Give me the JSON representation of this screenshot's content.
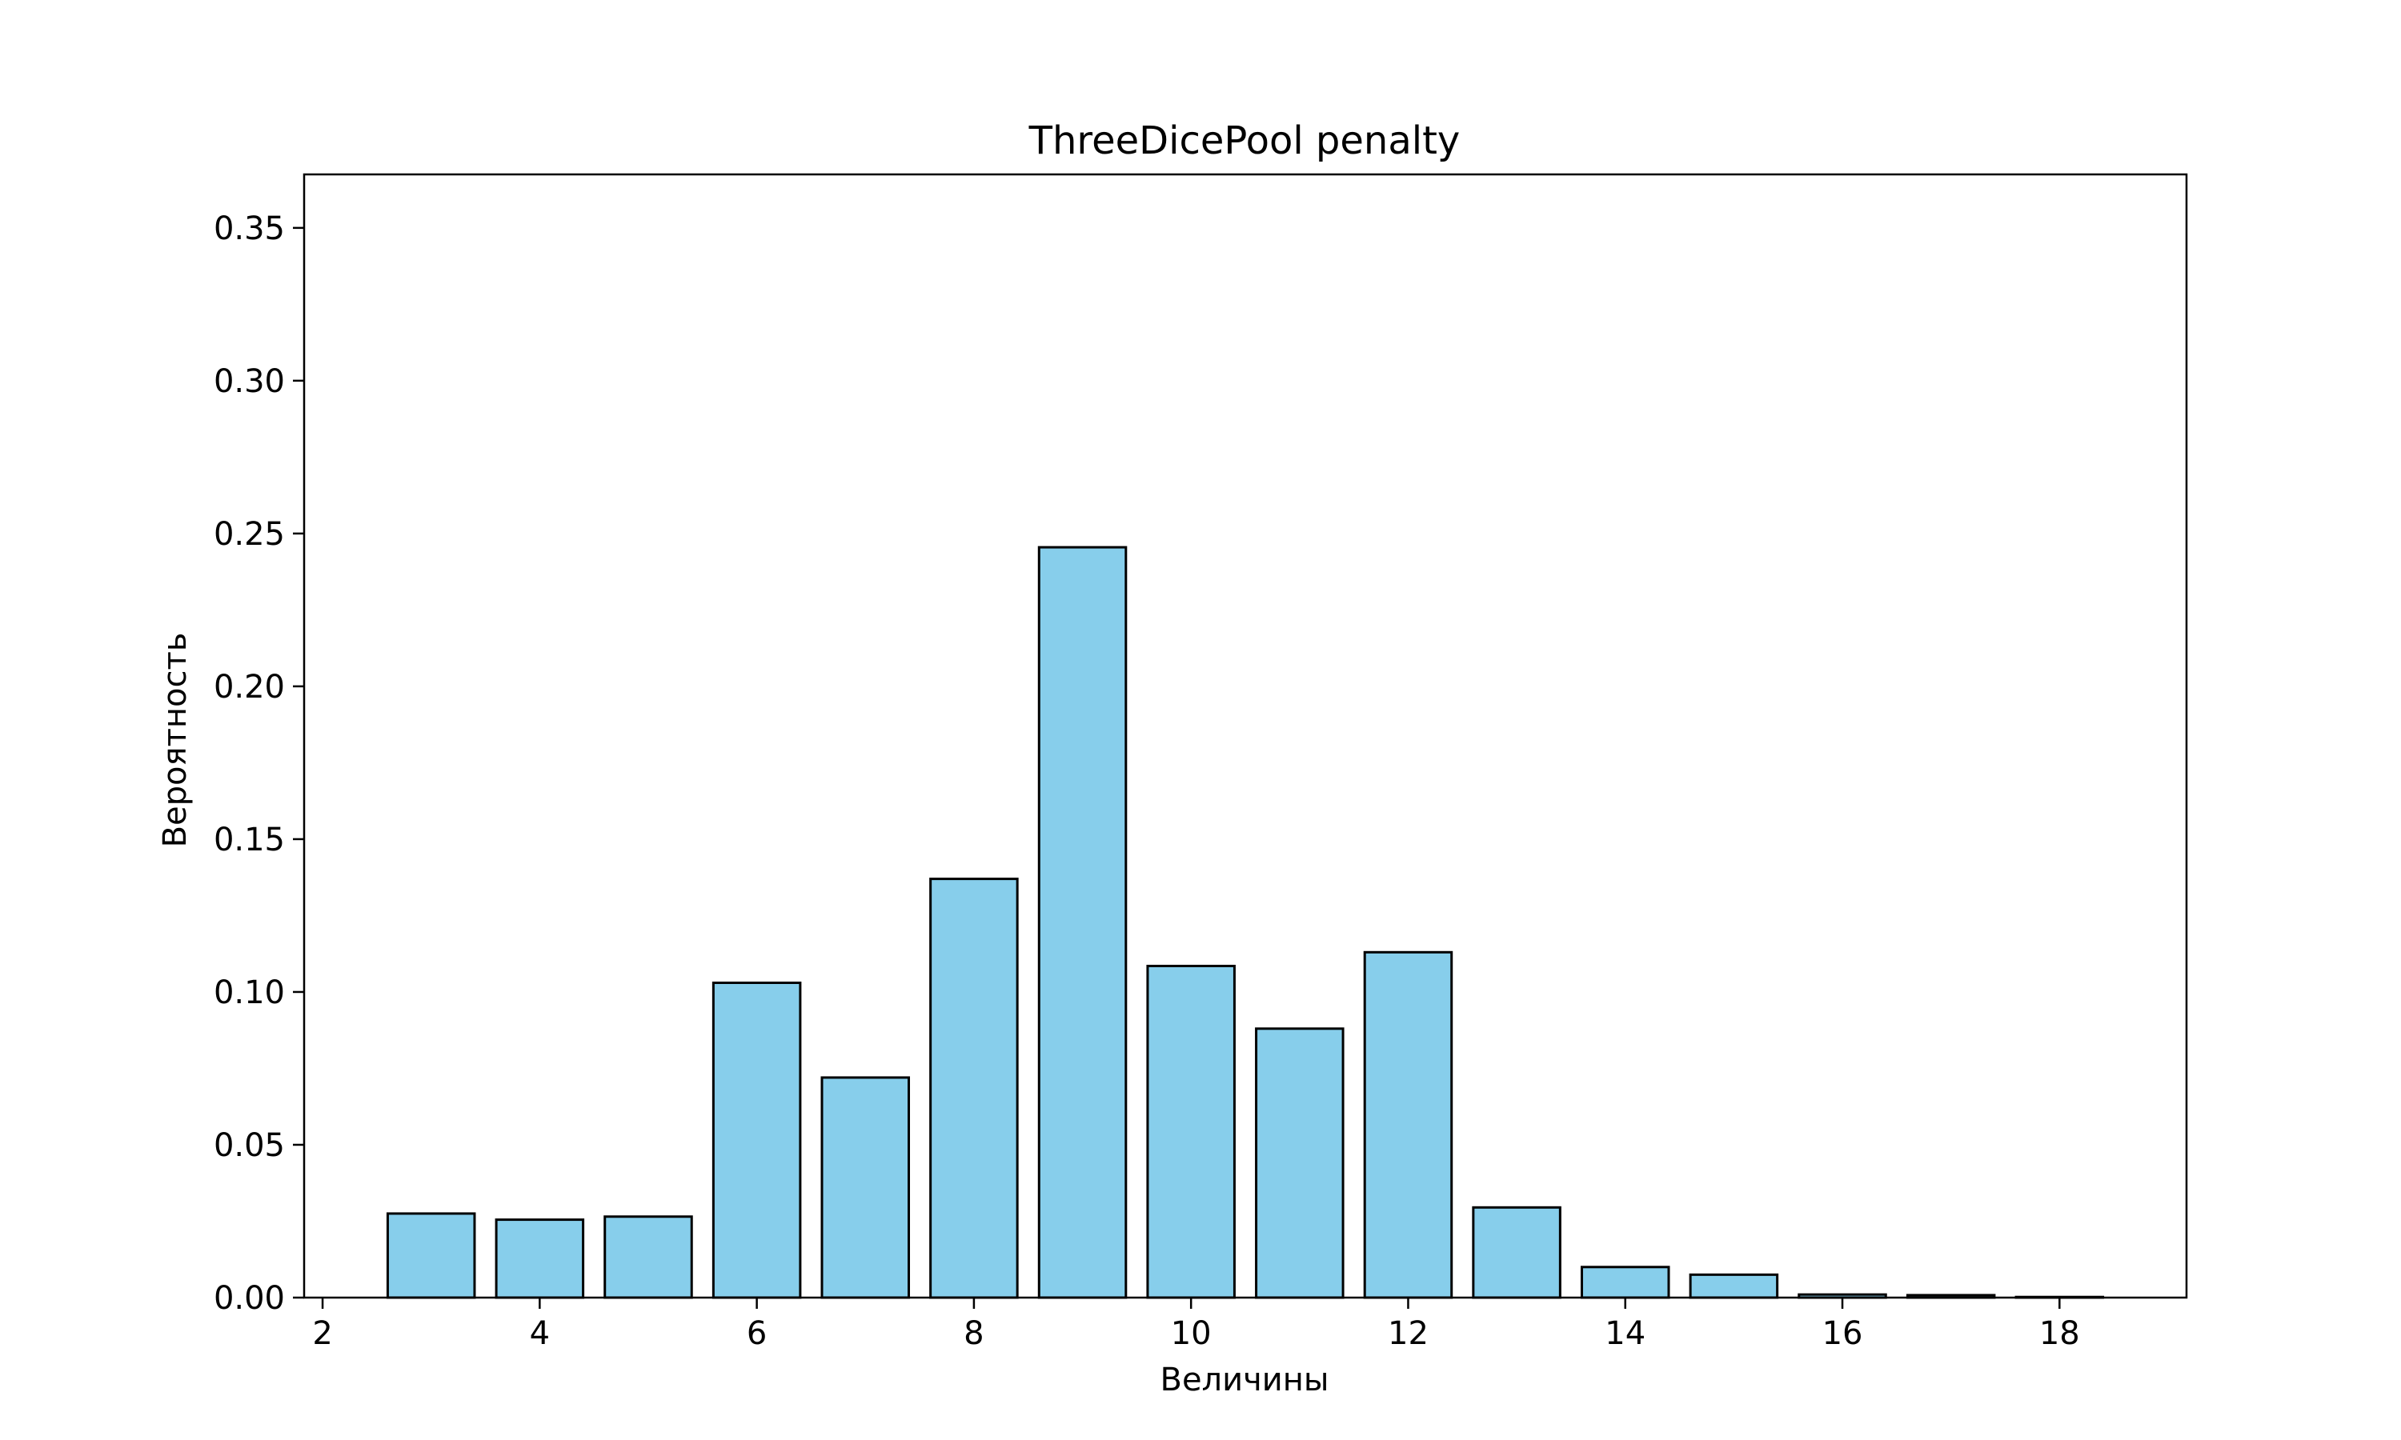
{
  "chart_data": {
    "type": "bar",
    "title": "ThreeDicePool penalty",
    "xlabel": "Величины",
    "ylabel": "Вероятность",
    "x": [
      3,
      4,
      5,
      6,
      7,
      8,
      9,
      10,
      11,
      12,
      13,
      14,
      15,
      16,
      17,
      18
    ],
    "values": [
      0.0275,
      0.0255,
      0.0265,
      0.103,
      0.072,
      0.137,
      0.2455,
      0.1085,
      0.088,
      0.113,
      0.0295,
      0.01,
      0.0075,
      0.001,
      0.0008,
      0.0002
    ],
    "xlim": [
      1.83,
      19.17
    ],
    "ylim": [
      0,
      0.3675
    ],
    "xticks": [
      "2",
      "4",
      "6",
      "8",
      "10",
      "12",
      "14",
      "16",
      "18"
    ],
    "yticks": [
      "0.00",
      "0.05",
      "0.10",
      "0.15",
      "0.20",
      "0.25",
      "0.30",
      "0.35"
    ],
    "bar_color": "#87ceeb",
    "edge_color": "#000000",
    "grid": false,
    "legend": "none"
  }
}
